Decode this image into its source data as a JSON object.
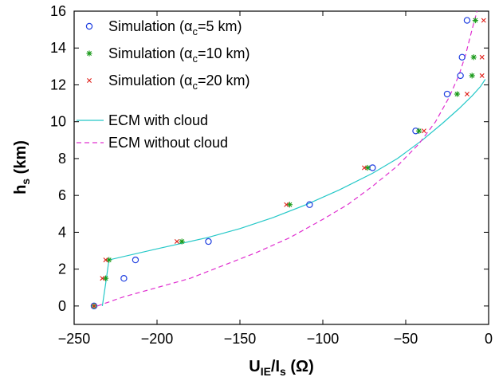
{
  "chart_data": {
    "type": "scatter",
    "xlabel": {
      "main": "U",
      "sub": "IE",
      "rest": "/I",
      "sub2": "s",
      "unit": " (Ω)"
    },
    "ylabel": {
      "main": "h",
      "sub": "s",
      "unit": " (km)"
    },
    "xlim": [
      -250,
      0
    ],
    "ylim": [
      -1,
      16
    ],
    "xticks": [
      -250,
      -200,
      -150,
      -100,
      -50,
      0
    ],
    "yticks": [
      0,
      2,
      4,
      6,
      8,
      10,
      12,
      14,
      16
    ],
    "grid": false,
    "legend_position": "top-left",
    "legend": [
      {
        "pre": "Simulation (",
        "greek": "α",
        "sub": "c",
        "post": "=5 km)"
      },
      {
        "pre": "Simulation (",
        "greek": "α",
        "sub": "c",
        "post": "=10 km)"
      },
      {
        "pre": "Simulation (",
        "greek": "α",
        "sub": "c",
        "post": "=20 km)"
      },
      {
        "pre": "ECM with cloud"
      },
      {
        "pre": "ECM without cloud"
      }
    ],
    "series": [
      {
        "marker": "circle",
        "color": "#1f3fe0",
        "x": [
          -238,
          -220,
          -213,
          -169,
          -108,
          -70,
          -44,
          -25,
          -17,
          -16,
          -13
        ],
        "y": [
          0,
          1.5,
          2.5,
          3.5,
          5.5,
          7.5,
          9.5,
          11.5,
          12.5,
          13.5,
          15.5
        ]
      },
      {
        "marker": "star",
        "color": "#1a9a1a",
        "x": [
          -238,
          -231,
          -229,
          -185,
          -120,
          -73,
          -42,
          -19,
          -10,
          -9,
          -8
        ],
        "y": [
          0,
          1.5,
          2.5,
          3.5,
          5.5,
          7.5,
          9.5,
          11.5,
          12.5,
          13.5,
          15.5
        ]
      },
      {
        "marker": "x",
        "color": "#e0201a",
        "x": [
          -238,
          -233,
          -231,
          -188,
          -122,
          -75,
          -39,
          -13,
          -4,
          -4,
          -3
        ],
        "y": [
          0,
          1.5,
          2.5,
          3.5,
          5.5,
          7.5,
          9.5,
          11.5,
          12.5,
          13.5,
          15.5
        ]
      },
      {
        "marker": "line-solid",
        "color": "#25c8c8",
        "x": [
          -233,
          -231,
          -229,
          -200,
          -170,
          -150,
          -130,
          -110,
          -90,
          -70,
          -55,
          -40,
          -28,
          -18,
          -10,
          -5,
          -2
        ],
        "y": [
          0,
          1.2,
          2.5,
          3.1,
          3.7,
          4.2,
          4.8,
          5.5,
          6.3,
          7.2,
          8.0,
          9.0,
          9.9,
          10.7,
          11.4,
          11.9,
          12.3
        ]
      },
      {
        "marker": "line-dashed",
        "color": "#e030d0",
        "x": [
          -236,
          -220,
          -200,
          -180,
          -160,
          -140,
          -120,
          -100,
          -85,
          -70,
          -55,
          -42,
          -32,
          -24,
          -18,
          -14,
          -10,
          -7
        ],
        "y": [
          0,
          0.5,
          1.0,
          1.5,
          2.2,
          2.9,
          3.7,
          4.7,
          5.5,
          6.5,
          7.6,
          8.8,
          10.0,
          11.3,
          12.5,
          13.6,
          15.0,
          16.0
        ]
      }
    ]
  }
}
